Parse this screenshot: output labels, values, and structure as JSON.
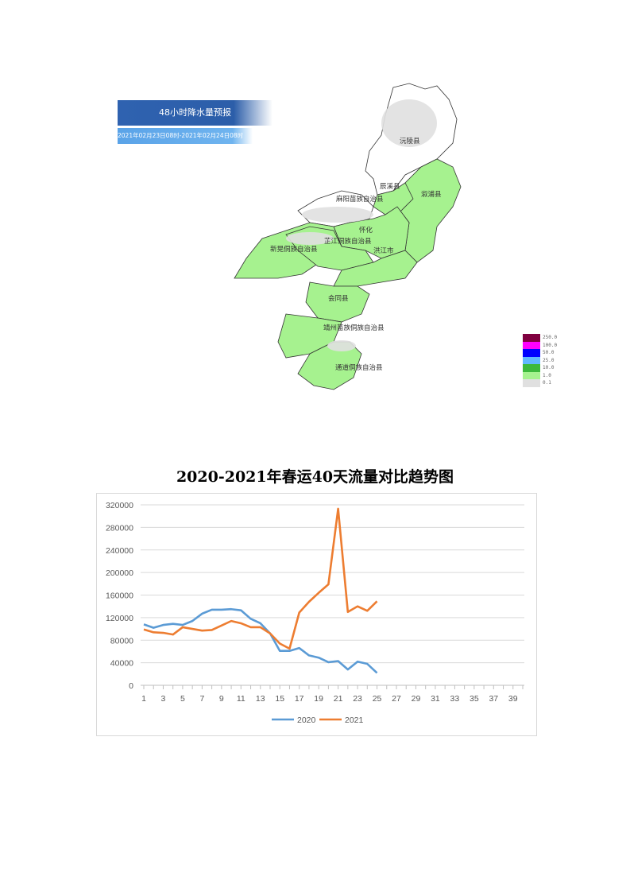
{
  "map": {
    "title": "48小时降水量预报",
    "date_range": "2021年02月23日08时-2021年02月24日08时",
    "labels": [
      "沅陵县",
      "辰溪县",
      "溆浦县",
      "麻阳苗族自治县",
      "怀化",
      "芷江侗族自治县",
      "新晃侗族自治县",
      "洪江市",
      "会同县",
      "靖州苗族侗族自治县",
      "通道侗族自治县"
    ],
    "legend": [
      {
        "value": "250.0",
        "color": "#800040"
      },
      {
        "value": "100.0",
        "color": "#ff00ff"
      },
      {
        "value": "50.0",
        "color": "#0000ff"
      },
      {
        "value": "25.0",
        "color": "#61b8ff"
      },
      {
        "value": "10.0",
        "color": "#3cb93c"
      },
      {
        "value": "1.0",
        "color": "#a6f28f"
      },
      {
        "value": "0.1",
        "color": "#e0e0e0"
      }
    ]
  },
  "chart_data": {
    "type": "line",
    "title": "2020-2021年春运40天流量对比趋势图",
    "x_ticks": [
      "1",
      "3",
      "5",
      "7",
      "9",
      "11",
      "13",
      "15",
      "17",
      "19",
      "21",
      "23",
      "25",
      "27",
      "29",
      "31",
      "33",
      "35",
      "37",
      "39"
    ],
    "y_ticks": [
      "0",
      "40000",
      "80000",
      "120000",
      "160000",
      "200000",
      "240000",
      "280000",
      "320000"
    ],
    "xlim": [
      1,
      40
    ],
    "ylim": [
      0,
      320000
    ],
    "grid": "horizontal",
    "legend_position": "bottom",
    "x": [
      1,
      2,
      3,
      4,
      5,
      6,
      7,
      8,
      9,
      10,
      11,
      12,
      13,
      14,
      15,
      16,
      17,
      18,
      19,
      20,
      21,
      22,
      23,
      24,
      25
    ],
    "series": [
      {
        "name": "2020",
        "color": "#5b9bd5",
        "values": [
          108000,
          102000,
          107000,
          109000,
          107000,
          114000,
          127000,
          134000,
          134000,
          135000,
          133000,
          118000,
          110000,
          92000,
          61000,
          61000,
          66000,
          53000,
          49000,
          41000,
          43000,
          28000,
          42000,
          38000,
          22000
        ]
      },
      {
        "name": "2021",
        "color": "#ed7d31",
        "values": [
          99000,
          94000,
          93000,
          90000,
          103000,
          100000,
          97000,
          98000,
          106000,
          114000,
          110000,
          103000,
          103000,
          92000,
          74000,
          65000,
          129000,
          148000,
          164000,
          179000,
          313000,
          130000,
          140000,
          132000,
          149000
        ]
      }
    ]
  }
}
